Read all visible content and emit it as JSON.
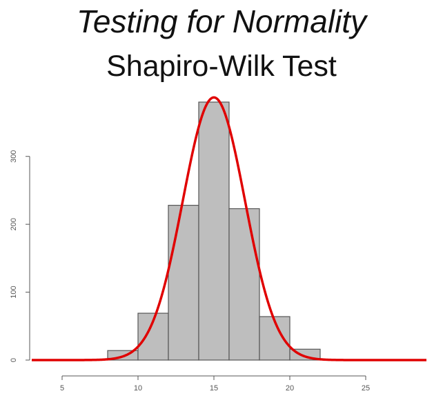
{
  "slide": {
    "title": "Testing for Normality",
    "subtitle": "Shapiro-Wilk Test"
  },
  "chart_data": {
    "type": "bar",
    "bins": [
      [
        8,
        10
      ],
      [
        10,
        12
      ],
      [
        12,
        14
      ],
      [
        14,
        16
      ],
      [
        16,
        18
      ],
      [
        18,
        20
      ],
      [
        20,
        22
      ]
    ],
    "values": [
      14,
      69,
      228,
      380,
      223,
      64,
      16
    ],
    "xlim": [
      3,
      29
    ],
    "ylim": [
      0,
      380
    ],
    "xticks": [
      "5",
      "10",
      "15",
      "20",
      "25"
    ],
    "yticks": [
      "0",
      "100",
      "200",
      "300"
    ],
    "density_curve": {
      "mean": 15,
      "sd": 2.05
    },
    "bar_fill": "#bebebe",
    "bar_stroke": "#555555",
    "curve_color": "#e00000"
  }
}
